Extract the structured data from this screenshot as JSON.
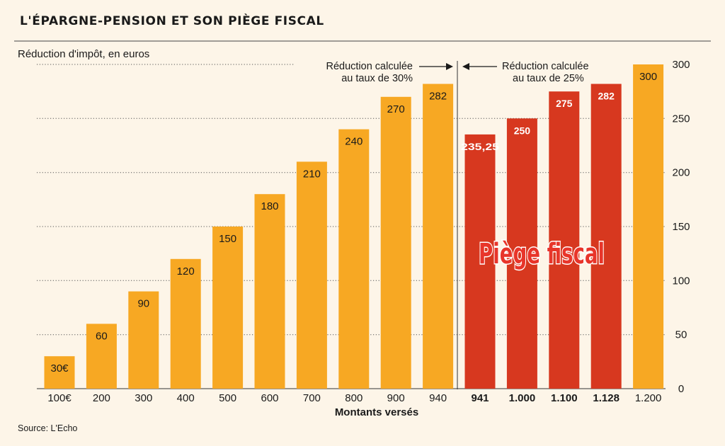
{
  "header": {
    "title": "L'ÉPARGNE-PENSION ET SON PIÈGE FISCAL",
    "source": "Source: L'Echo"
  },
  "chart_data": {
    "type": "bar",
    "title": "L'ÉPARGNE-PENSION ET SON PIÈGE FISCAL",
    "ylabel": "Réduction d'impôt, en euros",
    "xlabel": "Montants versés",
    "ylim": [
      0,
      300
    ],
    "yticks": [
      "0",
      "50",
      "100",
      "150",
      "200",
      "250",
      "300"
    ],
    "yaxis_side": "right",
    "grid": "dotted horizontal",
    "categories": [
      "100€",
      "200",
      "300",
      "400",
      "500",
      "600",
      "700",
      "800",
      "900",
      "940",
      "941",
      "1.000",
      "1.100",
      "1.128",
      "1.200"
    ],
    "values": [
      30,
      60,
      90,
      120,
      150,
      180,
      210,
      240,
      270,
      282,
      235.25,
      250,
      275,
      282,
      300
    ],
    "value_labels": [
      "30€",
      "60",
      "90",
      "120",
      "150",
      "180",
      "210",
      "240",
      "270",
      "282",
      "235,25",
      "250",
      "275",
      "282",
      "300"
    ],
    "bar_group": [
      "normal",
      "normal",
      "normal",
      "normal",
      "normal",
      "normal",
      "normal",
      "normal",
      "normal",
      "normal",
      "trap",
      "trap",
      "trap",
      "trap",
      "normal"
    ],
    "colors": {
      "normal": "#f7a823",
      "trap": "#d7381f",
      "background": "#fdf5e8"
    },
    "annotations": {
      "left_rate": [
        "Réduction calculée",
        "au taux de 30%"
      ],
      "right_rate": [
        "Réduction calculée",
        "au taux de 25%"
      ],
      "trap_label": "Piège fiscal"
    }
  }
}
